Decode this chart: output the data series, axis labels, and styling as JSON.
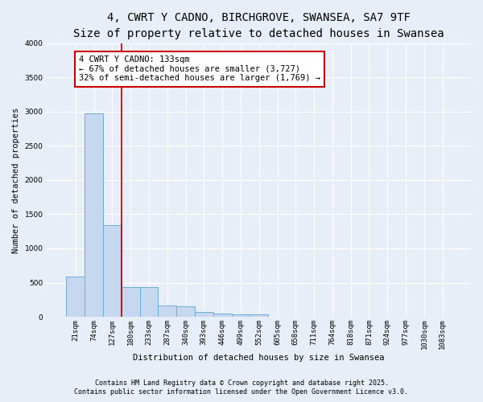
{
  "title_line1": "4, CWRT Y CADNO, BIRCHGROVE, SWANSEA, SA7 9TF",
  "title_line2": "Size of property relative to detached houses in Swansea",
  "xlabel": "Distribution of detached houses by size in Swansea",
  "ylabel": "Number of detached properties",
  "bar_values": [
    585,
    2970,
    1340,
    430,
    430,
    160,
    155,
    70,
    45,
    35,
    35,
    0,
    0,
    0,
    0,
    0,
    0,
    0,
    0,
    0,
    0
  ],
  "bar_labels": [
    "21sqm",
    "74sqm",
    "127sqm",
    "180sqm",
    "233sqm",
    "287sqm",
    "340sqm",
    "393sqm",
    "446sqm",
    "499sqm",
    "552sqm",
    "605sqm",
    "658sqm",
    "711sqm",
    "764sqm",
    "818sqm",
    "871sqm",
    "924sqm",
    "977sqm",
    "1030sqm",
    "1083sqm"
  ],
  "bar_color": "#c5d8ef",
  "bar_edge_color": "#6baed6",
  "background_color": "#e8eef8",
  "grid_color": "#ffffff",
  "vline_x": 2.5,
  "vline_color": "#aa0000",
  "annotation_text": "4 CWRT Y CADNO: 133sqm\n← 67% of detached houses are smaller (3,727)\n32% of semi-detached houses are larger (1,769) →",
  "annotation_box_color": "#ffffff",
  "annotation_box_edge": "#cc0000",
  "ylim": [
    0,
    4000
  ],
  "yticks": [
    0,
    500,
    1000,
    1500,
    2000,
    2500,
    3000,
    3500,
    4000
  ],
  "footer_line1": "Contains HM Land Registry data © Crown copyright and database right 2025.",
  "footer_line2": "Contains public sector information licensed under the Open Government Licence v3.0.",
  "title_fontsize": 10,
  "subtitle_fontsize": 9,
  "axis_label_fontsize": 7.5,
  "tick_fontsize": 6.5,
  "annotation_fontsize": 7.5,
  "footer_fontsize": 6
}
